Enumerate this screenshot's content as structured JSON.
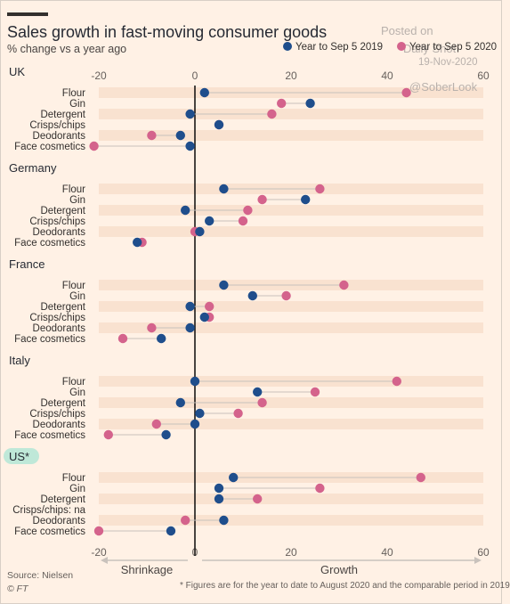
{
  "header": {
    "title": "Sales growth in fast-moving consumer goods",
    "subtitle": "% change vs a year ago"
  },
  "watermark": {
    "posted_line1": "Posted on",
    "posted_line2": "Daily Shot",
    "date": "19-Nov-2020",
    "handle": "@SoberLook"
  },
  "legend": {
    "items": [
      {
        "label": "Year to Sep 5 2019",
        "color": "#1f4e8c"
      },
      {
        "label": "Year to Sep 5 2020",
        "color": "#d4638c"
      }
    ]
  },
  "footer": {
    "source": "Source: Nielsen",
    "credit": "© FT",
    "note": "* Figures are for the year to date to August 2020 and the comparable period in 2019",
    "shrinkage": "Shrinkage",
    "growth": "Growth"
  },
  "colors": {
    "s2019": "#1f4e8c",
    "s2020": "#d4638c",
    "band": "#f9e2d0",
    "connector": "#c8c1bb"
  },
  "chart_data": {
    "type": "dot",
    "xlim": [
      -20,
      60
    ],
    "xticks": [
      -20,
      0,
      20,
      40,
      60
    ],
    "series": [
      {
        "name": "Year to Sep 5 2019",
        "key": "y2019"
      },
      {
        "name": "Year to Sep 5 2020",
        "key": "y2020"
      }
    ],
    "groups": [
      {
        "name": "UK",
        "items": [
          {
            "label": "Flour",
            "y2019": 2,
            "y2020": 44
          },
          {
            "label": "Gin",
            "y2019": 24,
            "y2020": 18
          },
          {
            "label": "Detergent",
            "y2019": -1,
            "y2020": 16
          },
          {
            "label": "Crisps/chips",
            "y2019": 5,
            "y2020": 5
          },
          {
            "label": "Deodorants",
            "y2019": -3,
            "y2020": -9
          },
          {
            "label": "Face cosmetics",
            "y2019": -1,
            "y2020": -21
          }
        ]
      },
      {
        "name": "Germany",
        "items": [
          {
            "label": "Flour",
            "y2019": 6,
            "y2020": 26
          },
          {
            "label": "Gin",
            "y2019": 23,
            "y2020": 14
          },
          {
            "label": "Detergent",
            "y2019": -2,
            "y2020": 11
          },
          {
            "label": "Crisps/chips",
            "y2019": 3,
            "y2020": 10
          },
          {
            "label": "Deodorants",
            "y2019": 1,
            "y2020": 0
          },
          {
            "label": "Face cosmetics",
            "y2019": -12,
            "y2020": -11
          }
        ]
      },
      {
        "name": "France",
        "items": [
          {
            "label": "Flour",
            "y2019": 6,
            "y2020": 31
          },
          {
            "label": "Gin",
            "y2019": 12,
            "y2020": 19
          },
          {
            "label": "Detergent",
            "y2019": -1,
            "y2020": 3
          },
          {
            "label": "Crisps/chips",
            "y2019": 2,
            "y2020": 3
          },
          {
            "label": "Deodorants",
            "y2019": -1,
            "y2020": -9
          },
          {
            "label": "Face cosmetics",
            "y2019": -7,
            "y2020": -15
          }
        ]
      },
      {
        "name": "Italy",
        "items": [
          {
            "label": "Flour",
            "y2019": 0,
            "y2020": 42
          },
          {
            "label": "Gin",
            "y2019": 13,
            "y2020": 25
          },
          {
            "label": "Detergent",
            "y2019": -3,
            "y2020": 14
          },
          {
            "label": "Crisps/chips",
            "y2019": 1,
            "y2020": 9
          },
          {
            "label": "Deodorants",
            "y2019": 0,
            "y2020": -8
          },
          {
            "label": "Face cosmetics",
            "y2019": -6,
            "y2020": -18
          }
        ]
      },
      {
        "name": "US*",
        "items": [
          {
            "label": "Flour",
            "y2019": 8,
            "y2020": 47
          },
          {
            "label": "Gin",
            "y2019": 5,
            "y2020": 26
          },
          {
            "label": "Detergent",
            "y2019": 5,
            "y2020": 13
          },
          {
            "label": "Crisps/chips: na",
            "y2019": null,
            "y2020": null
          },
          {
            "label": "Deodorants",
            "y2019": 6,
            "y2020": -2
          },
          {
            "label": "Face cosmetics",
            "y2019": -5,
            "y2020": -20
          }
        ]
      }
    ]
  }
}
